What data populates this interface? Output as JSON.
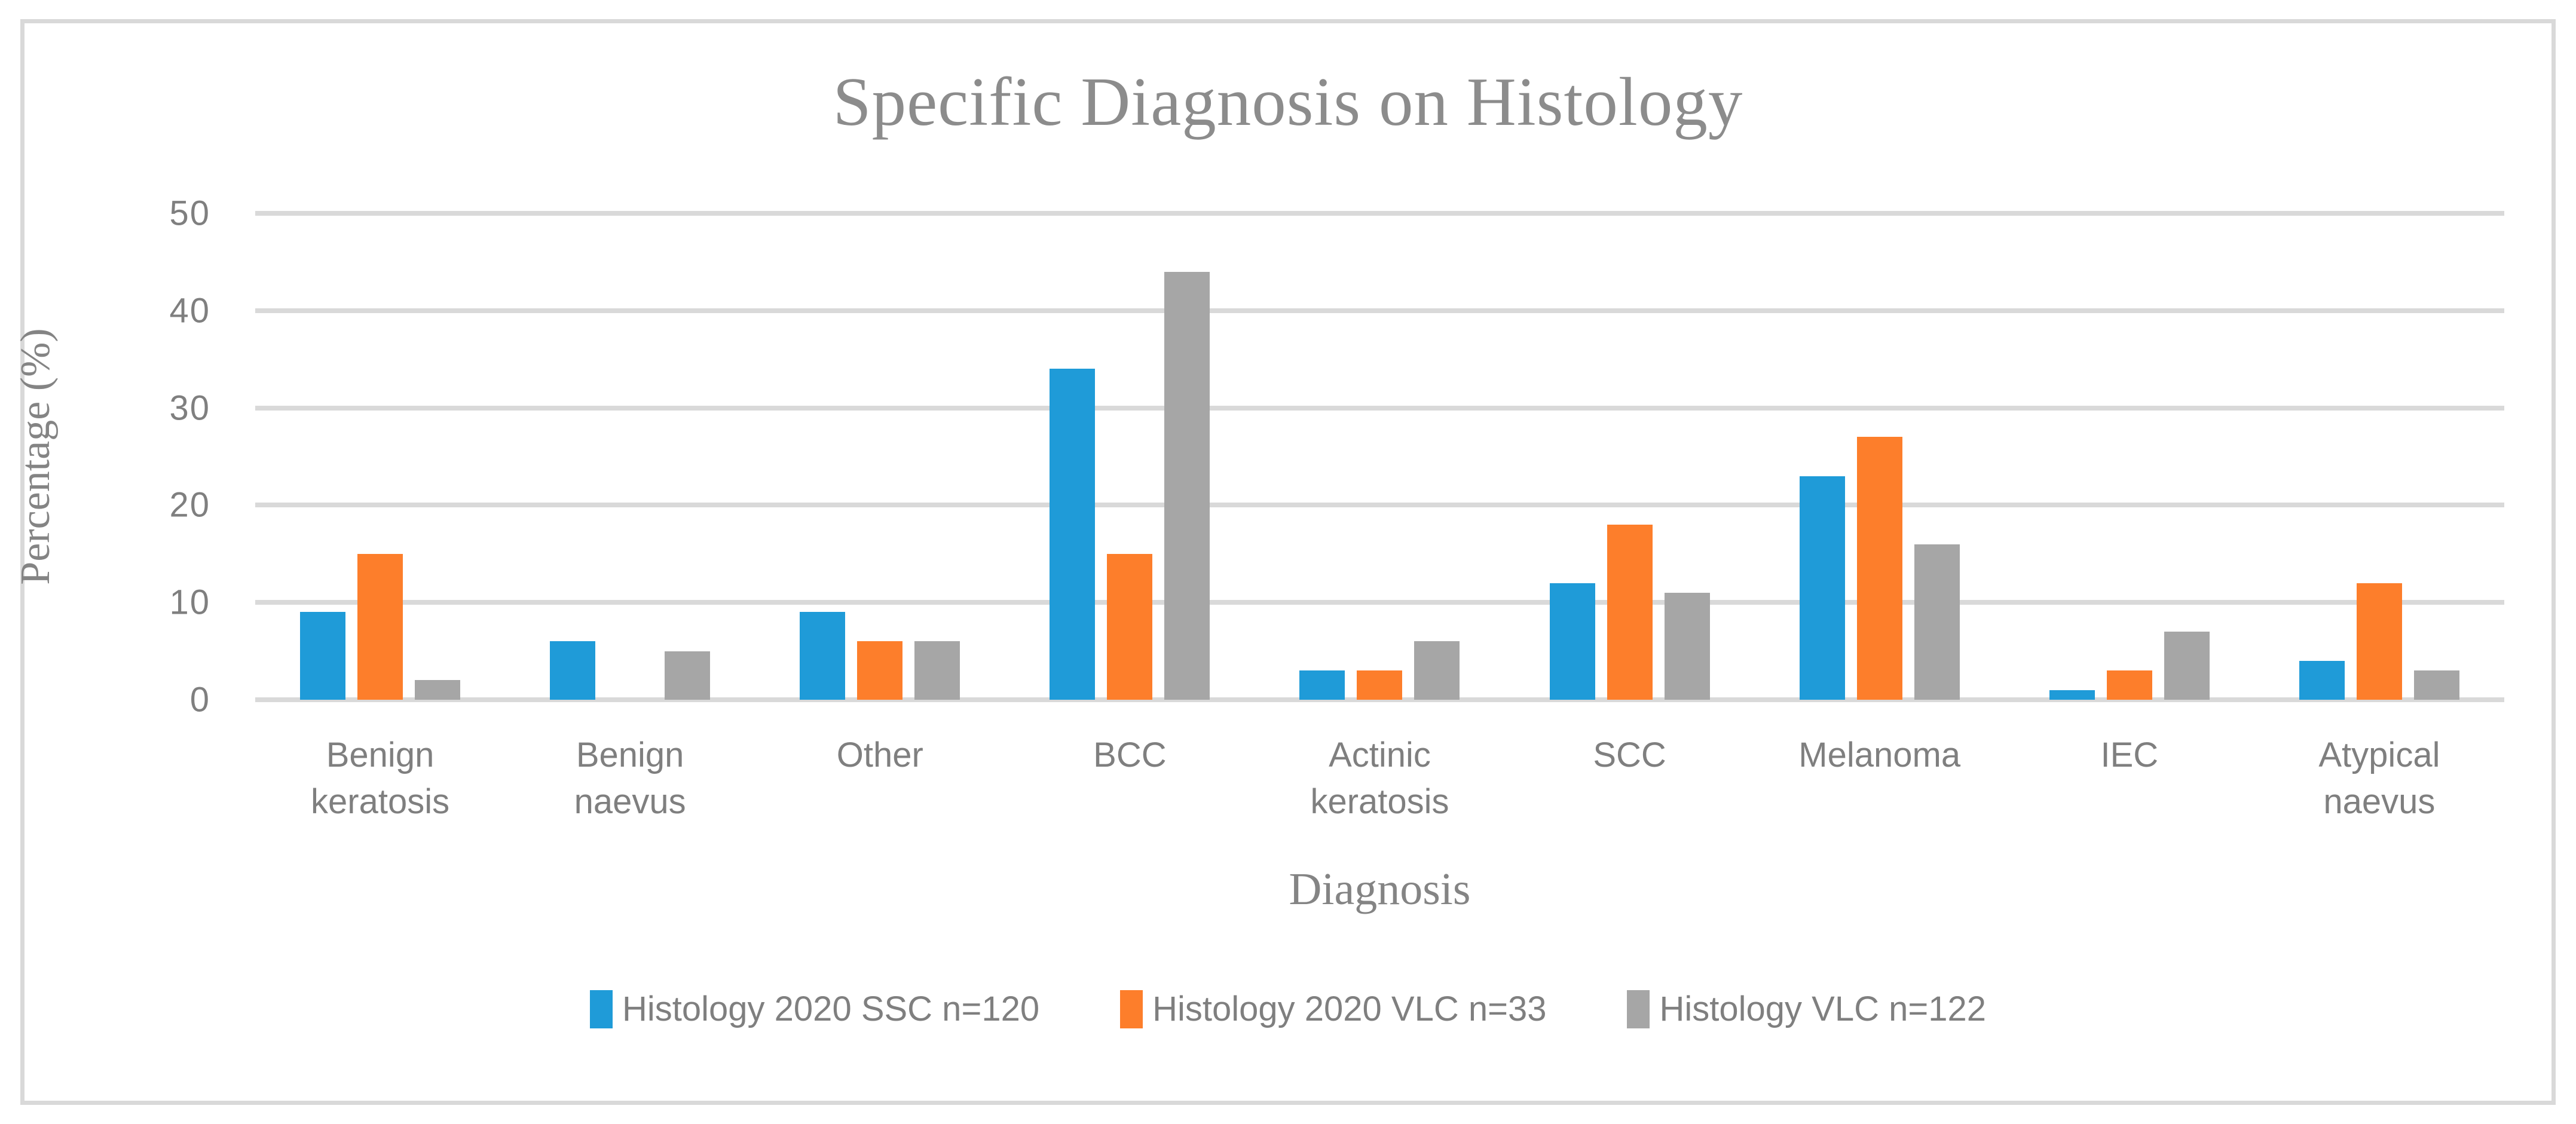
{
  "chart_data": {
    "type": "bar",
    "title": "Specific Diagnosis on Histology",
    "xlabel": "Diagnosis",
    "ylabel": "Percentage (%)",
    "ylim": [
      0,
      50
    ],
    "yticks": [
      0,
      10,
      20,
      30,
      40,
      50
    ],
    "grid": "horizontal",
    "legend_position": "bottom",
    "categories": [
      "Benign keratosis",
      "Benign naevus",
      "Other",
      "BCC",
      "Actinic keratosis",
      "SCC",
      "Melanoma",
      "IEC",
      "Atypical naevus"
    ],
    "series": [
      {
        "name": "Histology 2020 SSC n=120",
        "color": "#1F9BD8",
        "values": [
          9,
          6,
          9,
          34,
          3,
          12,
          23,
          1,
          4
        ]
      },
      {
        "name": "Histology 2020 VLC n=33",
        "color": "#FD7E2B",
        "values": [
          15,
          0,
          6,
          15,
          3,
          18,
          27,
          3,
          12
        ]
      },
      {
        "name": "Histology VLC n=122",
        "color": "#A6A6A6",
        "values": [
          2,
          5,
          6,
          44,
          6,
          11,
          16,
          7,
          3
        ]
      }
    ]
  },
  "colors": {
    "gridline": "#D9D9D9",
    "frame_border": "#D9D9D9",
    "title_text": "#8C8C8C",
    "axis_title_text": "#848484",
    "tick_text": "#7F7F7F",
    "background": "#FFFFFF"
  }
}
